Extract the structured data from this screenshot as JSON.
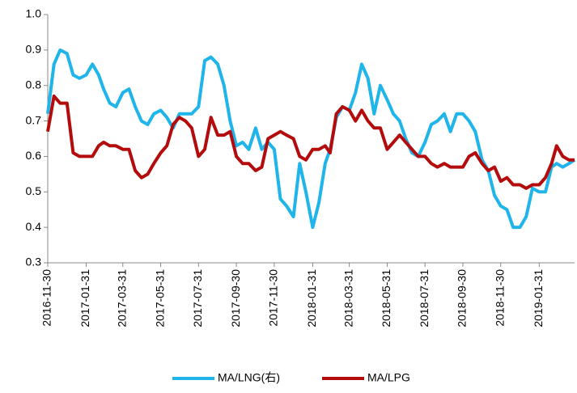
{
  "chart_data": {
    "type": "line",
    "x": [
      "2016-11-30",
      "2016-12-10",
      "2016-12-20",
      "2016-12-31",
      "2017-01-10",
      "2017-01-20",
      "2017-01-31",
      "2017-02-10",
      "2017-02-20",
      "2017-02-28",
      "2017-03-10",
      "2017-03-20",
      "2017-03-31",
      "2017-04-10",
      "2017-04-20",
      "2017-04-30",
      "2017-05-10",
      "2017-05-20",
      "2017-05-31",
      "2017-06-10",
      "2017-06-20",
      "2017-06-30",
      "2017-07-10",
      "2017-07-20",
      "2017-07-31",
      "2017-08-10",
      "2017-08-20",
      "2017-08-31",
      "2017-09-10",
      "2017-09-20",
      "2017-09-30",
      "2017-10-10",
      "2017-10-20",
      "2017-10-31",
      "2017-11-10",
      "2017-11-20",
      "2017-11-30",
      "2017-12-10",
      "2017-12-20",
      "2017-12-31",
      "2018-01-10",
      "2018-01-20",
      "2018-01-31",
      "2018-02-10",
      "2018-02-20",
      "2018-02-28",
      "2018-03-10",
      "2018-03-20",
      "2018-03-31",
      "2018-04-10",
      "2018-04-20",
      "2018-04-30",
      "2018-05-10",
      "2018-05-20",
      "2018-05-31",
      "2018-06-10",
      "2018-06-20",
      "2018-06-30",
      "2018-07-10",
      "2018-07-20",
      "2018-07-31",
      "2018-08-10",
      "2018-08-20",
      "2018-08-31",
      "2018-09-10",
      "2018-09-20",
      "2018-09-30",
      "2018-10-10",
      "2018-10-20",
      "2018-10-31",
      "2018-11-10",
      "2018-11-20",
      "2018-11-30",
      "2018-12-10",
      "2018-12-20",
      "2018-12-31",
      "2019-01-10",
      "2019-01-20",
      "2019-01-31",
      "2019-02-10",
      "2019-02-20",
      "2019-02-28",
      "2019-03-10",
      "2019-03-20",
      "2019-03-29"
    ],
    "series": [
      {
        "name": "MA/LNG(右)",
        "color": "#1fb5ea",
        "values": [
          0.72,
          0.86,
          0.9,
          0.89,
          0.83,
          0.82,
          0.83,
          0.86,
          0.83,
          0.79,
          0.75,
          0.74,
          0.78,
          0.79,
          0.74,
          0.7,
          0.69,
          0.72,
          0.73,
          0.71,
          0.68,
          0.72,
          0.72,
          0.72,
          0.74,
          0.87,
          0.88,
          0.86,
          0.8,
          0.7,
          0.63,
          0.64,
          0.62,
          0.68,
          0.62,
          0.64,
          0.62,
          0.48,
          0.46,
          0.43,
          0.58,
          0.5,
          0.4,
          0.47,
          0.58,
          0.62,
          0.71,
          0.74,
          0.73,
          0.78,
          0.86,
          0.82,
          0.72,
          0.8,
          0.76,
          0.72,
          0.7,
          0.65,
          0.61,
          0.6,
          0.64,
          0.69,
          0.7,
          0.72,
          0.67,
          0.72,
          0.72,
          0.7,
          0.67,
          0.59,
          0.56,
          0.49,
          0.46,
          0.45,
          0.4,
          0.4,
          0.43,
          0.51,
          0.5,
          0.5,
          0.57,
          0.58,
          0.57,
          0.58,
          0.59
        ]
      },
      {
        "name": "MA/LPG",
        "color": "#b40c0c",
        "values": [
          0.67,
          0.77,
          0.75,
          0.75,
          0.61,
          0.6,
          0.6,
          0.6,
          0.63,
          0.64,
          0.63,
          0.63,
          0.62,
          0.62,
          0.56,
          0.54,
          0.55,
          0.58,
          0.61,
          0.63,
          0.69,
          0.71,
          0.7,
          0.68,
          0.6,
          0.62,
          0.71,
          0.66,
          0.66,
          0.67,
          0.6,
          0.58,
          0.58,
          0.56,
          0.57,
          0.65,
          0.66,
          0.67,
          0.66,
          0.65,
          0.6,
          0.59,
          0.62,
          0.62,
          0.63,
          0.61,
          0.72,
          0.74,
          0.73,
          0.7,
          0.73,
          0.7,
          0.68,
          0.68,
          0.62,
          0.64,
          0.66,
          0.64,
          0.62,
          0.6,
          0.6,
          0.58,
          0.57,
          0.58,
          0.57,
          0.57,
          0.57,
          0.6,
          0.61,
          0.58,
          0.56,
          0.57,
          0.53,
          0.54,
          0.52,
          0.52,
          0.51,
          0.52,
          0.52,
          0.54,
          0.58,
          0.63,
          0.6,
          0.59,
          0.59
        ]
      }
    ],
    "xlim": [
      "2016-11-30",
      "2019-03-29"
    ],
    "xticks": [
      "2016-11-30",
      "2017-01-31",
      "2017-03-31",
      "2017-05-31",
      "2017-07-31",
      "2017-09-30",
      "2017-11-30",
      "2018-01-31",
      "2018-03-31",
      "2018-05-31",
      "2018-07-31",
      "2018-09-30",
      "2018-11-30",
      "2019-01-31"
    ],
    "ylim": [
      0.3,
      1.0
    ],
    "yticks": [
      0.3,
      0.4,
      0.5,
      0.6,
      0.7,
      0.8,
      0.9,
      {
        "value": 1.0,
        "label": "1.0"
      }
    ],
    "grid": false,
    "legend": "bottom"
  }
}
